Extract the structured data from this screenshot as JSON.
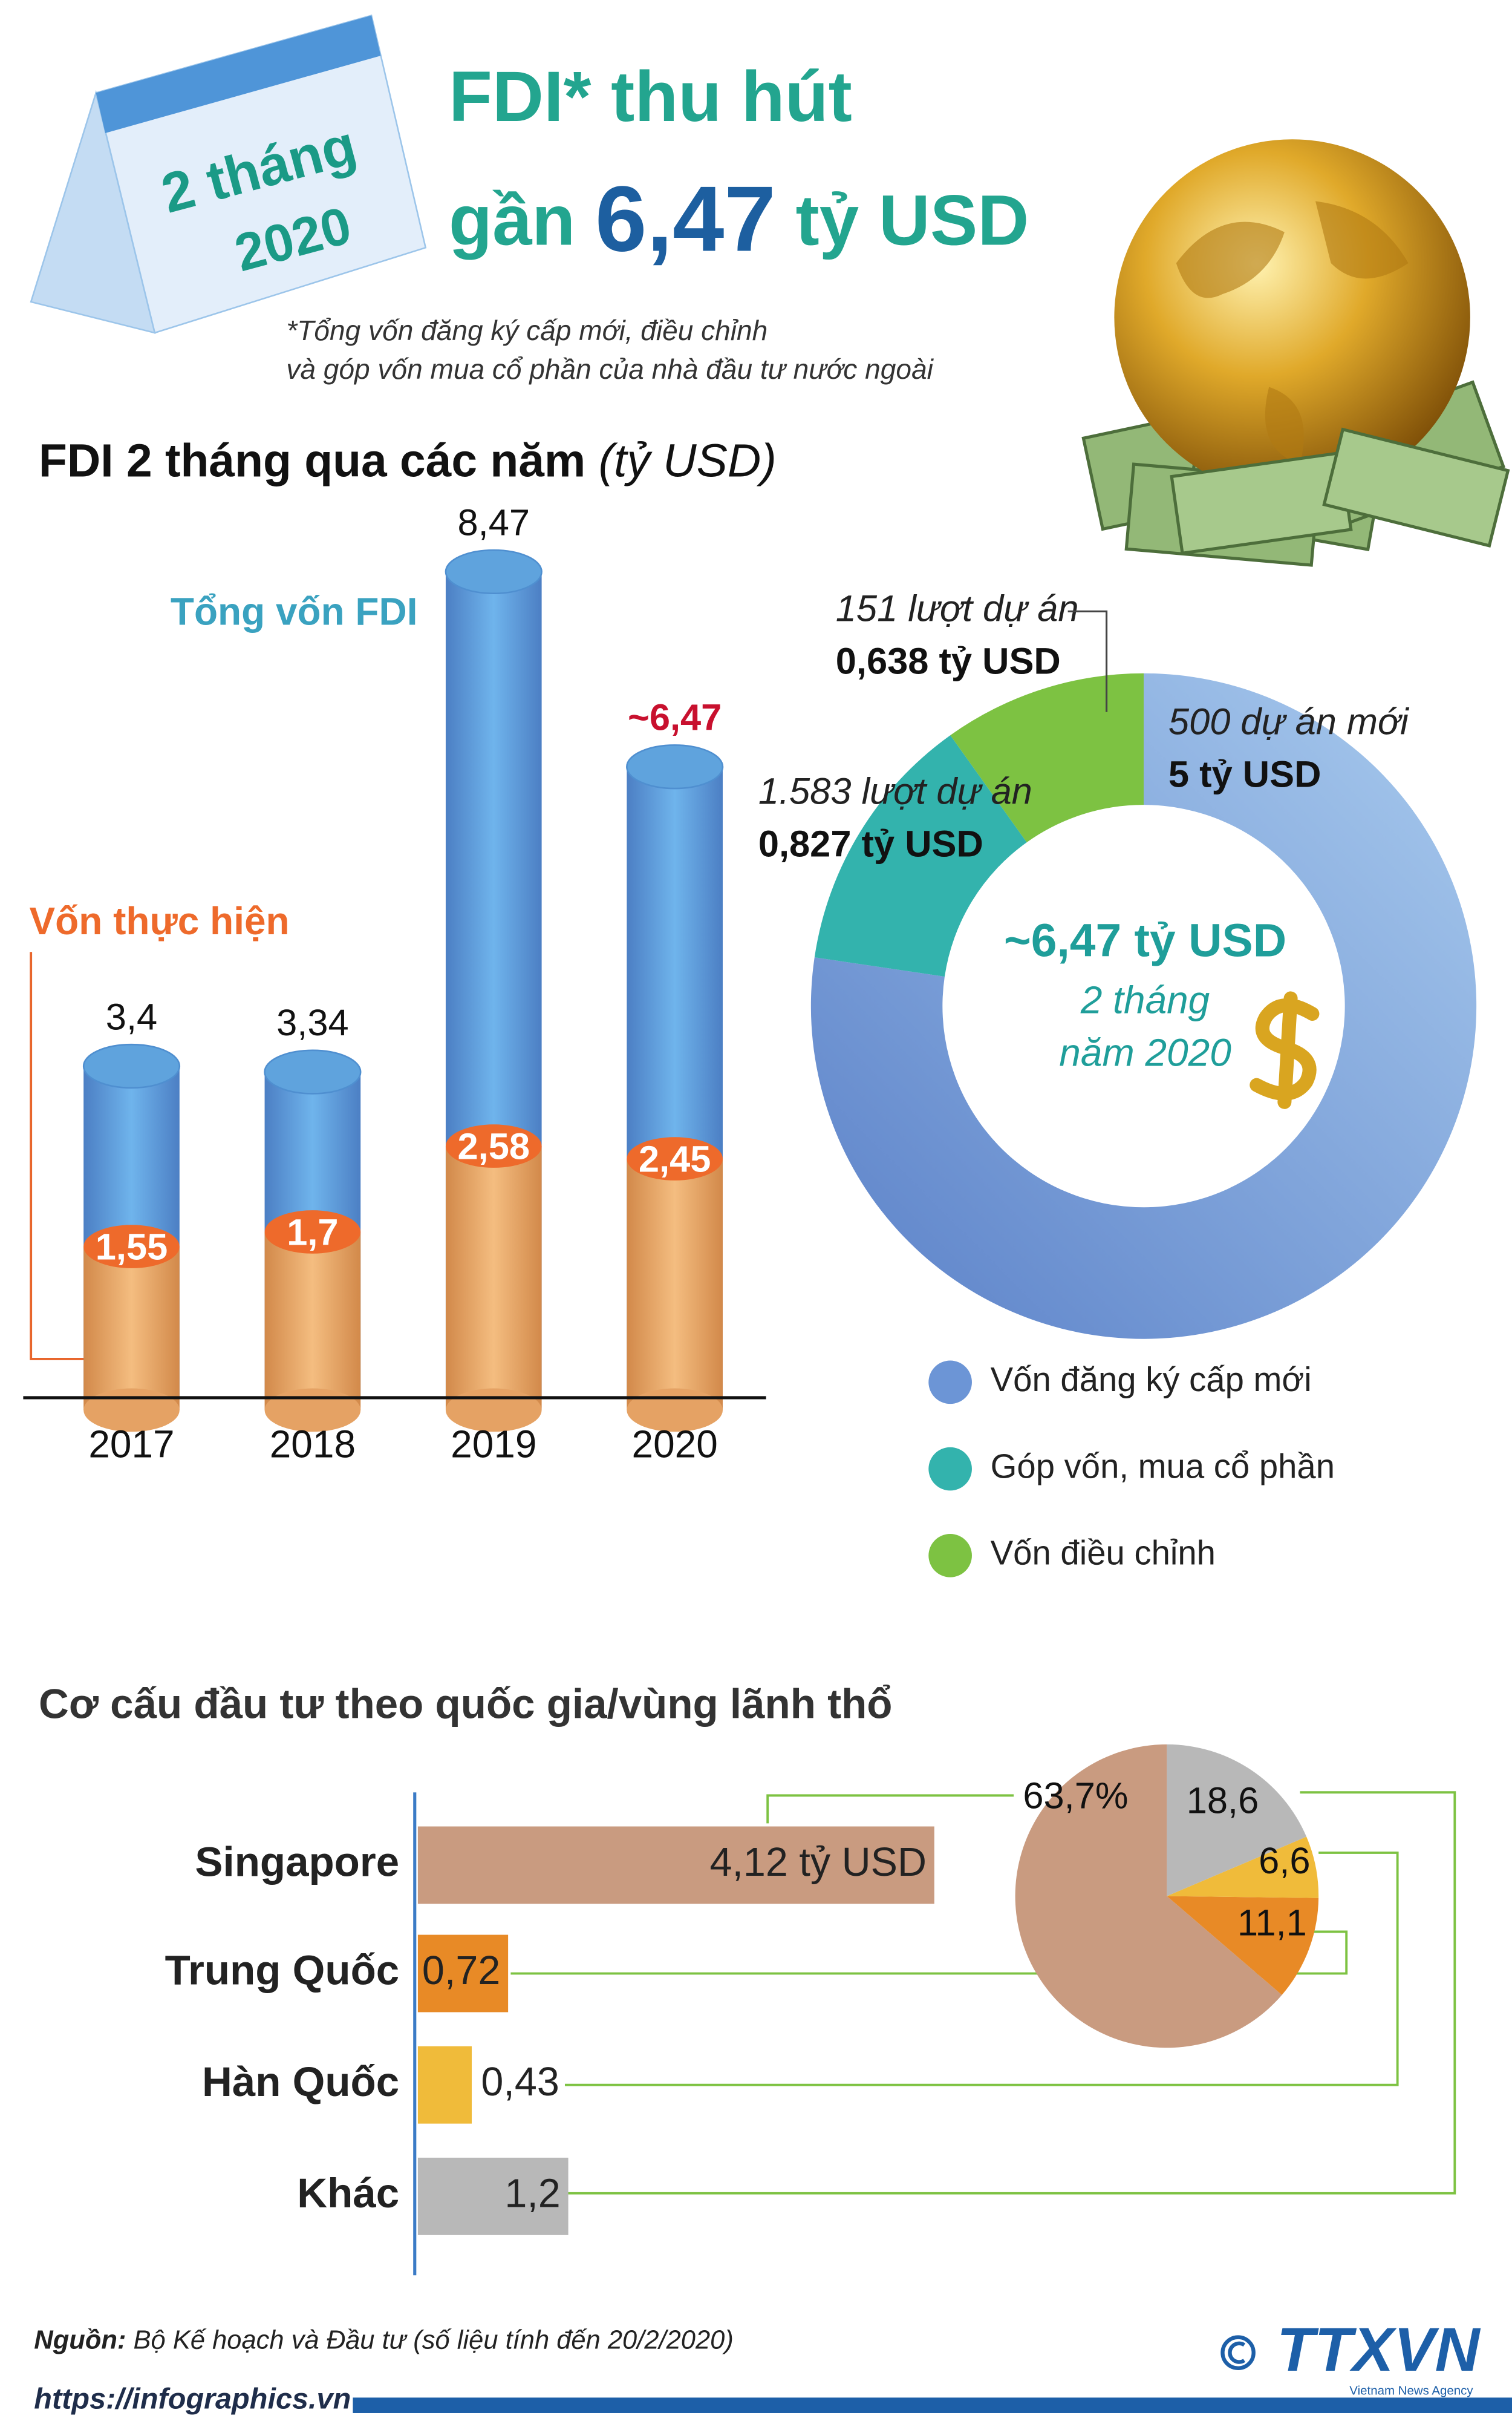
{
  "header": {
    "badge": [
      "2 tháng",
      "2020"
    ],
    "title": "FDI* thu hút",
    "headline": {
      "prefix": "gần",
      "value": "6,47",
      "suffix": "tỷ USD"
    },
    "note": [
      "*Tổng vốn đăng ký cấp mới, điều chỉnh",
      "và góp vốn mua cổ phần của nhà đầu tư nước ngoài"
    ]
  },
  "chart_data": [
    {
      "type": "bar",
      "title": "FDI 2 tháng qua các năm",
      "unit": "(tỷ USD)",
      "categories": [
        "2017",
        "2018",
        "2019",
        "2020"
      ],
      "series": [
        {
          "name": "Tổng vốn FDI",
          "color": "#5fa3dd",
          "values": [
            3.4,
            3.34,
            8.47,
            6.47
          ],
          "value_labels": [
            "3,4",
            "3,34",
            "8,47",
            "~6,47"
          ]
        },
        {
          "name": "Vốn thực hiện",
          "color": "#ee6a2b",
          "values": [
            1.55,
            1.7,
            2.58,
            2.45
          ],
          "value_labels": [
            "1,55",
            "1,7",
            "2,58",
            "2,45"
          ]
        }
      ]
    },
    {
      "type": "donut",
      "categories": [
        "Vốn đăng ký cấp mới",
        "Góp vốn, mua cổ phần",
        "Vốn điều chỉnh"
      ],
      "colors": [
        "#6c95d6",
        "#33b3ad",
        "#7dc242"
      ],
      "values": [
        5,
        0.827,
        0.638
      ],
      "value_labels": [
        "5 tỷ USD",
        "0,827 tỷ USD",
        "0,638 tỷ USD"
      ],
      "projects": [
        "500 dự án mới",
        "1.583 lượt dự án",
        "151 lượt dự án"
      ],
      "center": [
        "~6,47 tỷ USD",
        "2 tháng",
        "năm 2020"
      ]
    },
    {
      "type": "bar",
      "orientation": "horizontal",
      "title": "Cơ cấu đầu tư theo quốc gia/vùng lãnh thổ",
      "categories": [
        "Singapore",
        "Trung Quốc",
        "Hàn Quốc",
        "Khác"
      ],
      "colors": [
        "#c99b80",
        "#e88a26",
        "#f0bb3a",
        "#b8b8b8"
      ],
      "values": [
        4.12,
        0.72,
        0.43,
        1.2
      ],
      "value_labels": [
        "4,12 tỷ USD",
        "0,72",
        "0,43",
        "1,2"
      ],
      "shares": {
        "values": [
          63.7,
          11.1,
          6.6,
          18.6
        ],
        "value_labels": [
          "63,7%",
          "11,1",
          "6,6",
          "18,6"
        ]
      }
    }
  ],
  "footer": {
    "source_label": "Nguồn:",
    "source": "Bộ Kế hoạch và Đầu tư (số liệu tính đến 20/2/2020)",
    "url": "https://infographics.vn",
    "logo": "TTXVN",
    "agency": "Vietnam News Agency"
  }
}
